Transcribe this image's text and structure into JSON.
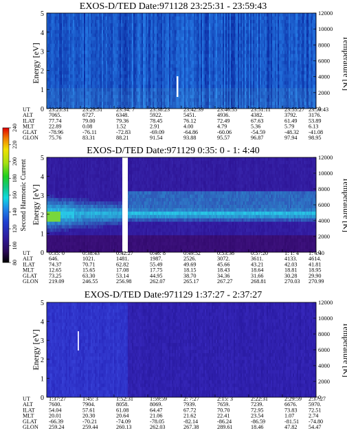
{
  "chart_data": [
    {
      "type": "heatmap",
      "title": "EXOS-D/TED   Date:971128   23:25:31 - 23:59:43",
      "ylabel": "Energy [eV]",
      "y2label": "Temperature [K]",
      "ylim": [
        0,
        5
      ],
      "y_ticks": [
        "0",
        "1",
        "2",
        "3",
        "4",
        "5"
      ],
      "y2lim": [
        0,
        12000
      ],
      "y2_ticks": [
        "0",
        "2000",
        "4000",
        "6000",
        "8000",
        "10000",
        "12000"
      ],
      "row_labels": [
        "UT",
        "ALT",
        "ILAT",
        "MLT",
        "GLAT",
        "GLON"
      ],
      "columns": [
        [
          "23:25:31",
          "7065.",
          "77.74",
          "22.89",
          "-78.96",
          "75.76"
        ],
        [
          "23:29:51",
          "6727.",
          "79.00",
          "0.08",
          "-76.11",
          "83.31"
        ],
        [
          "23:34: 7",
          "6348.",
          "79.36",
          "1.52",
          "-72.83",
          "88.21"
        ],
        [
          "23:38:23",
          "5922.",
          "78.45",
          "2.91",
          "-69.09",
          "91.54"
        ],
        [
          "23:42:39",
          "5451.",
          "76.12",
          "4.00",
          "-64.86",
          "93.88"
        ],
        [
          "23:46:55",
          "4936.",
          "72.49",
          "4.79",
          "-60.06",
          "95.57"
        ],
        [
          "23:51:11",
          "4382.",
          "67.63",
          "5.36",
          "-54.59",
          "96.87"
        ],
        [
          "23:55:27",
          "3792.",
          "61.49",
          "5.79",
          "-48.32",
          "97.94"
        ],
        [
          "23:59:43",
          "3176.",
          "53.89",
          "6.13",
          "-41.08",
          "98.95"
        ]
      ]
    },
    {
      "type": "heatmap",
      "title": "EXOS-D/TED   Date:971129   0:35: 0 - 1: 4:40",
      "ylabel": "Energy [eV]",
      "y2label": "Temperature [K]",
      "ylim": [
        0,
        5
      ],
      "y_ticks": [
        "0",
        "1",
        "2",
        "3",
        "4",
        "5"
      ],
      "y2lim": [
        0,
        12000
      ],
      "y2_ticks": [
        "0",
        "2000",
        "4000",
        "6000",
        "8000",
        "10000",
        "12000"
      ],
      "colorbar": {
        "label": "Second Harmonic Current",
        "ticks": [
          "80",
          "100",
          "120",
          "140",
          "160",
          "180",
          "200",
          "220",
          "240"
        ],
        "colors": [
          "#000000",
          "#2a0a55",
          "#2e1a9a",
          "#1f3fd0",
          "#1f88e8",
          "#10d8e0",
          "#10c880",
          "#20d020",
          "#a8e010",
          "#f0e000",
          "#f08000",
          "#e00000"
        ]
      },
      "row_labels": [
        "UT",
        "ALT",
        "ILAT",
        "MLT",
        "GLAT",
        "GLON"
      ],
      "columns": [
        [
          "0:35: 0",
          "646.",
          "74.37",
          "12.65",
          "73.25",
          "219.09"
        ],
        [
          "0:38:43",
          "1021.",
          "70.71",
          "15.65",
          "63.30",
          "246.55"
        ],
        [
          "0:42:27",
          "1481.",
          "62.82",
          "17.08",
          "53.14",
          "256.98"
        ],
        [
          "0:46: 8",
          "1987.",
          "55.49",
          "17.75",
          "44.95",
          "262.07"
        ],
        [
          "0:49:52",
          "2526.",
          "49.69",
          "18.15",
          "38.70",
          "265.17"
        ],
        [
          "0:53:36",
          "3072.",
          "45.66",
          "18.43",
          "34.36",
          "267.27"
        ],
        [
          "0:57:20",
          "3611.",
          "43.21",
          "18.64",
          "31.66",
          "268.81"
        ],
        [
          "1: 1: 4",
          "4133.",
          "42.03",
          "18.81",
          "30.28",
          "270.03"
        ],
        [
          "1: 4:40",
          "4614.",
          "41.81",
          "18.95",
          "29.90",
          "270.99"
        ]
      ]
    },
    {
      "type": "heatmap",
      "title": "EXOS-D/TED   Date:971129   1:37:27 - 2:37:27",
      "ylabel": "Energy [eV]",
      "y2label": "Temperature [K]",
      "ylim": [
        0,
        5
      ],
      "y_ticks": [
        "0",
        "1",
        "2",
        "3",
        "4",
        "5"
      ],
      "y2lim": [
        0,
        12000
      ],
      "y2_ticks": [
        "0",
        "2000",
        "4000",
        "6000",
        "8000",
        "10000",
        "12000"
      ],
      "row_labels": [
        "UT",
        "ALT",
        "ILAT",
        "MLT",
        "GLAT",
        "GLON"
      ],
      "columns": [
        [
          "1:37:27",
          "7600.",
          "54.04",
          "20.01",
          "-66.39",
          "259.24"
        ],
        [
          "1:45: 3",
          "7904.",
          "57.61",
          "20.30",
          "-70.21",
          "259.44"
        ],
        [
          "1:52:31",
          "8058.",
          "61.08",
          "20.64",
          "-74.09",
          "260.13"
        ],
        [
          "1:59:59",
          "8069.",
          "64.47",
          "21.06",
          "-78.05",
          "262.03"
        ],
        [
          "2: 7:27",
          "7939.",
          "67.72",
          "21.62",
          "-82.14",
          "267.38"
        ],
        [
          "2:15: 3",
          "7659.",
          "70.70",
          "22.41",
          "-86.24",
          "289.61"
        ],
        [
          "2:22:31",
          "7239.",
          "72.95",
          "23.54",
          "-86.59",
          "18.46"
        ],
        [
          "2:29:59",
          "6676.",
          "73.83",
          "1.07",
          "-81.51",
          "47.82"
        ],
        [
          "2:37:27",
          "5970.",
          "72.51",
          "2.74",
          "-74.80",
          "54.47"
        ]
      ]
    }
  ]
}
